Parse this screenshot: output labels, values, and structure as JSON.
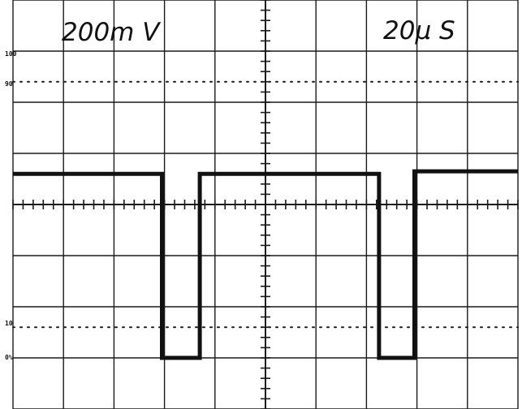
{
  "scope": {
    "volts_per_div": "200m V",
    "time_per_div": "20µ S",
    "reference_marks": [
      "100",
      "90",
      "10",
      "0%"
    ]
  },
  "colors": {
    "background": "#ffffff",
    "grid": "#1a1a1a",
    "trace": "#111111"
  },
  "chart_data": {
    "type": "line",
    "title": "",
    "xlabel": "20µ S",
    "ylabel": "200m V",
    "grid": true,
    "divisions": {
      "x": 10,
      "y": 8
    },
    "subdivisions": 5,
    "xlim": [
      0,
      10
    ],
    "ylim": [
      -4,
      4
    ],
    "reference_lines": [
      {
        "label": "90",
        "y": 2.4
      },
      {
        "label": "10",
        "y": -2.4
      }
    ],
    "series": [
      {
        "points": [
          [
            0.0,
            0.6
          ],
          [
            2.95,
            0.6
          ],
          [
            2.95,
            -3.0
          ],
          [
            3.7,
            -3.0
          ],
          [
            3.7,
            0.6
          ],
          [
            7.25,
            0.6
          ],
          [
            7.25,
            -3.0
          ],
          [
            7.95,
            -3.0
          ],
          [
            7.95,
            0.65
          ],
          [
            10.0,
            0.65
          ]
        ]
      }
    ]
  }
}
